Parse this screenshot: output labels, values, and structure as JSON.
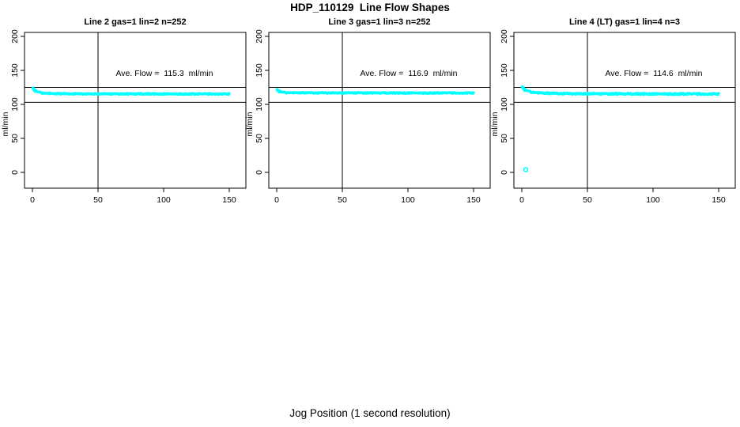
{
  "figure": {
    "title": "HDP_110129  Line Flow Shapes",
    "xlabel": "Jog Position (1 second resolution)"
  },
  "colors": {
    "points": "#00FFFF",
    "axis": "#000000",
    "background": "#FFFFFF"
  },
  "chart_data": [
    {
      "type": "scatter",
      "title": "Line 2 gas=1 lin=2 n=252",
      "n": 252,
      "ave_flow": 115.3,
      "ave_flow_label": "Ave. Flow =  115.3  ml/min",
      "ylabel": "ml/min",
      "x_ticks": [
        0,
        50,
        100,
        150
      ],
      "y_ticks": [
        0,
        50,
        100,
        150,
        200
      ],
      "xlim": [
        0,
        164
      ],
      "ylim": [
        0,
        205
      ],
      "ref_line_upper": 125,
      "ref_line_lower": 103,
      "ref_line_vertical": 50,
      "band_halfwidth": 1.8,
      "points": [
        [
          0.5,
          123
        ],
        [
          1,
          121.5
        ],
        [
          2,
          120
        ],
        [
          3,
          119
        ],
        [
          5,
          117.8
        ],
        [
          8,
          116.8
        ],
        [
          12,
          116.2
        ],
        [
          20,
          115.8
        ],
        [
          30,
          115.6
        ],
        [
          50,
          115.5
        ],
        [
          75,
          115.4
        ],
        [
          100,
          115.4
        ],
        [
          125,
          115.3
        ],
        [
          150,
          115.3
        ]
      ],
      "outliers": []
    },
    {
      "type": "scatter",
      "title": "Line 3 gas=1 lin=3 n=252",
      "n": 252,
      "ave_flow": 116.9,
      "ave_flow_label": "Ave. Flow =  116.9  ml/min",
      "ylabel": "ml/min",
      "x_ticks": [
        0,
        50,
        100,
        150
      ],
      "y_ticks": [
        0,
        50,
        100,
        150,
        200
      ],
      "xlim": [
        0,
        164
      ],
      "ylim": [
        0,
        205
      ],
      "ref_line_upper": 125,
      "ref_line_lower": 103,
      "ref_line_vertical": 50,
      "band_halfwidth": 1.6,
      "points": [
        [
          0.5,
          121
        ],
        [
          1,
          120
        ],
        [
          2,
          118.8
        ],
        [
          4,
          117.8
        ],
        [
          8,
          117.3
        ],
        [
          15,
          117.1
        ],
        [
          30,
          117
        ],
        [
          50,
          116.9
        ],
        [
          75,
          116.9
        ],
        [
          100,
          116.8
        ],
        [
          125,
          116.8
        ],
        [
          150,
          116.7
        ]
      ],
      "outliers": []
    },
    {
      "type": "scatter",
      "title": "Line 4 (LT) gas=1 lin=4 n=3",
      "n": 3,
      "ave_flow": 114.6,
      "ave_flow_label": "Ave. Flow =  114.6  ml/min",
      "ylabel": "ml/min",
      "x_ticks": [
        0,
        50,
        100,
        150
      ],
      "y_ticks": [
        0,
        50,
        100,
        150,
        200
      ],
      "xlim": [
        0,
        164
      ],
      "ylim": [
        0,
        205
      ],
      "ref_line_upper": 125,
      "ref_line_lower": 103,
      "ref_line_vertical": 50,
      "band_halfwidth": 2.3,
      "points": [
        [
          0.5,
          124.5
        ],
        [
          1,
          123
        ],
        [
          2,
          121.5
        ],
        [
          4,
          119.8
        ],
        [
          7,
          118.3
        ],
        [
          12,
          117.2
        ],
        [
          20,
          116.4
        ],
        [
          35,
          115.9
        ],
        [
          50,
          115.7
        ],
        [
          75,
          115.5
        ],
        [
          100,
          115.4
        ],
        [
          125,
          115.3
        ],
        [
          150,
          115.2
        ]
      ],
      "outliers": [
        [
          3,
          4
        ]
      ]
    }
  ]
}
